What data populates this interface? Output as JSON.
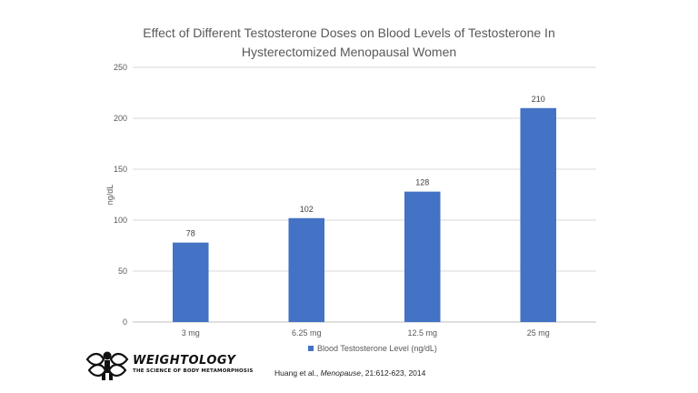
{
  "chart_data": {
    "type": "bar",
    "title_lines": [
      "Effect of Different Testosterone Doses on Blood Levels of Testosterone In",
      "Hysterectomized Menopausal Women"
    ],
    "categories": [
      "3 mg",
      "6.25 mg",
      "12.5 mg",
      "25 mg"
    ],
    "series": [
      {
        "name": "Blood Testosterone Level (ng/dL)",
        "values": [
          78,
          102,
          128,
          210
        ],
        "color": "#4472c4"
      }
    ],
    "data_labels": [
      "78",
      "102",
      "128",
      "210"
    ],
    "xlabel": "",
    "ylabel": "ng/dL",
    "ylim": [
      0,
      250
    ],
    "yticks": [
      0,
      50,
      100,
      150,
      200,
      250
    ],
    "ytick_labels": [
      "0",
      "50",
      "100",
      "150",
      "200",
      "250"
    ],
    "grid": true,
    "legend_position": "bottom"
  },
  "logo": {
    "name": "WEIGHTOLOGY",
    "tagline": "THE SCIENCE OF BODY METAMORPHOSIS",
    "icon": "dna-figure-icon"
  },
  "citation": {
    "authors": "Huang et al.,",
    "journal": "Menopause",
    "ref": ", 21:612-623, 2014"
  }
}
